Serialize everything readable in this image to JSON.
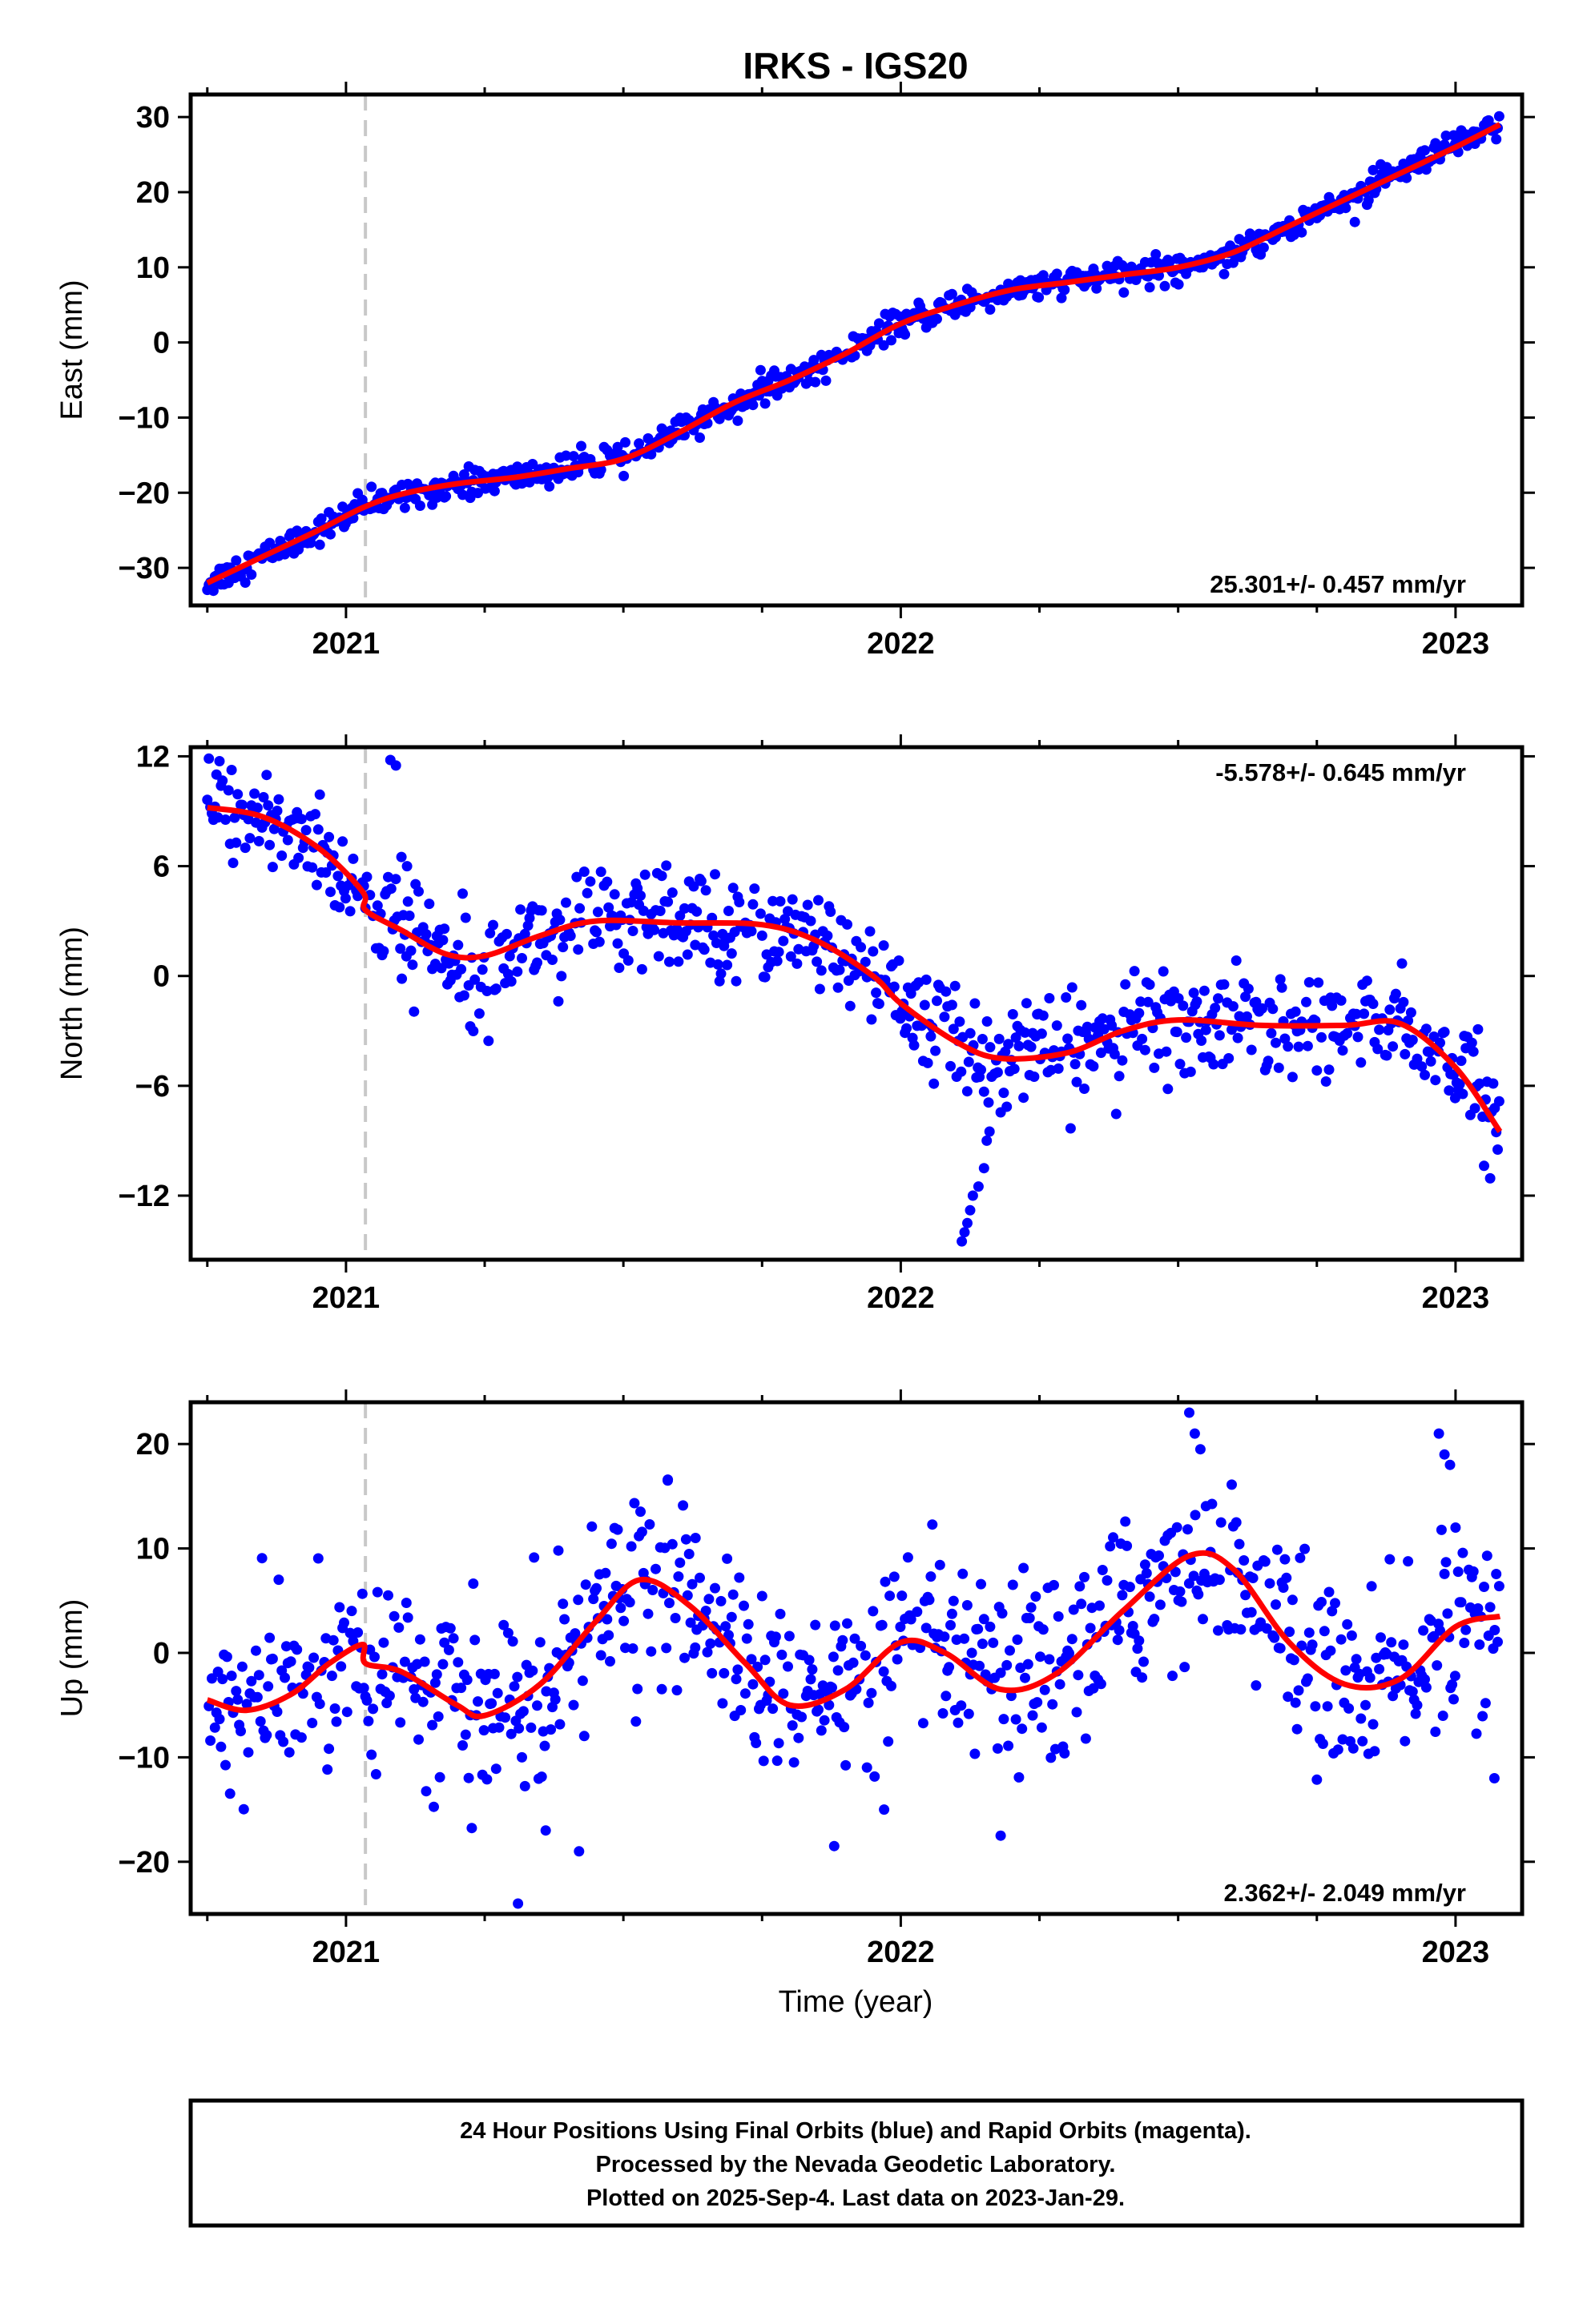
{
  "title": "IRKS - IGS20",
  "xlabel": "Time (year)",
  "footer": {
    "line1": "24 Hour Positions Using Final Orbits (blue) and Rapid Orbits (magenta).",
    "line2": "Processed by the Nevada Geodetic Laboratory.",
    "line3": "Plotted on 2025-Sep-4. Last data on 2023-Jan-29."
  },
  "colors": {
    "points": "#0000ff",
    "fit": "#ff0000",
    "event_line": "#c8c8c8",
    "frame": "#000000"
  },
  "chart_data": [
    {
      "type": "scatter",
      "component": "East",
      "ylabel": "East (mm)",
      "rate_label": "25.301+/- 0.457 mm/yr",
      "xlim": [
        2020.72,
        2023.12
      ],
      "ylim": [
        -35,
        33
      ],
      "yticks": [
        -30,
        -20,
        -10,
        0,
        10,
        20,
        30
      ],
      "ytick_labels": [
        "−30",
        "−20",
        "−10",
        "0",
        "10",
        "20",
        "30"
      ],
      "xticks": [
        2021,
        2022,
        2023
      ],
      "xtick_labels": [
        "2021",
        "2022",
        "2023"
      ],
      "event_line_x": 2021.035,
      "scatter_sigma": 0.9,
      "fit": {
        "x": [
          2020.75,
          2020.85,
          2020.95,
          2021.03,
          2021.1,
          2021.2,
          2021.3,
          2021.4,
          2021.5,
          2021.6,
          2021.7,
          2021.8,
          2021.9,
          2022.0,
          2022.1,
          2022.2,
          2022.3,
          2022.4,
          2022.5,
          2022.6,
          2022.7,
          2022.8,
          2022.9,
          2023.0,
          2023.08
        ],
        "y": [
          -32,
          -28.5,
          -25,
          -22,
          -20.2,
          -18.8,
          -18,
          -16.8,
          -15.5,
          -12,
          -8,
          -5,
          -1.5,
          2.5,
          5,
          7,
          8,
          9,
          10,
          12,
          15.5,
          19,
          22.5,
          26,
          29
        ]
      }
    },
    {
      "type": "scatter",
      "component": "North",
      "ylabel": "North (mm)",
      "rate_label": "-5.578+/- 0.645 mm/yr",
      "xlim": [
        2020.72,
        2023.12
      ],
      "ylim": [
        -15.5,
        12.5
      ],
      "yticks": [
        -12,
        -6,
        0,
        6,
        12
      ],
      "ytick_labels": [
        "−12",
        "−6",
        "0",
        "6",
        "12"
      ],
      "xticks": [
        2021,
        2022,
        2023
      ],
      "xtick_labels": [
        "2021",
        "2022",
        "2023"
      ],
      "event_line_x": 2021.035,
      "scatter_sigma": 1.4,
      "fit": {
        "x": [
          2020.75,
          2020.85,
          2020.95,
          2021.03,
          2021.035,
          2021.1,
          2021.18,
          2021.25,
          2021.35,
          2021.45,
          2021.6,
          2021.75,
          2021.85,
          2021.95,
          2022.0,
          2022.1,
          2022.18,
          2022.3,
          2022.4,
          2022.5,
          2022.65,
          2022.8,
          2022.9,
          2023.0,
          2023.08
        ],
        "y": [
          9.2,
          8.7,
          7.0,
          4.6,
          3.6,
          2.5,
          1.2,
          1.1,
          2.2,
          3.0,
          2.9,
          2.8,
          1.9,
          0.0,
          -1.5,
          -3.6,
          -4.5,
          -4.2,
          -3.0,
          -2.4,
          -2.7,
          -2.7,
          -2.6,
          -5.0,
          -8.5
        ]
      },
      "outliers": {
        "x": [
          2021.08,
          2021.09,
          2021.1,
          2021.11,
          2022.11,
          2022.115,
          2022.12,
          2022.125,
          2022.13,
          2022.14,
          2022.15,
          2022.155,
          2022.16
        ],
        "y": [
          11.8,
          11.5,
          6.5,
          6.0,
          -14.5,
          -14.0,
          -13.5,
          -12.8,
          -12.0,
          -11.5,
          -10.5,
          -9.0,
          -8.5
        ]
      }
    },
    {
      "type": "scatter",
      "component": "Up",
      "ylabel": "Up (mm)",
      "rate_label": "2.362+/- 2.049 mm/yr",
      "xlim": [
        2020.72,
        2023.12
      ],
      "ylim": [
        -25,
        24
      ],
      "yticks": [
        -20,
        -10,
        0,
        10,
        20
      ],
      "ytick_labels": [
        "−20",
        "−10",
        "0",
        "10",
        "20"
      ],
      "xticks": [
        2021,
        2022,
        2023
      ],
      "xtick_labels": [
        "2021",
        "2022",
        "2023"
      ],
      "event_line_x": 2021.035,
      "scatter_sigma": 4.2,
      "fit": {
        "x": [
          2020.75,
          2020.82,
          2020.9,
          2020.97,
          2021.03,
          2021.035,
          2021.1,
          2021.2,
          2021.25,
          2021.35,
          2021.45,
          2021.53,
          2021.62,
          2021.72,
          2021.8,
          2021.9,
          2022.0,
          2022.08,
          2022.18,
          2022.28,
          2022.4,
          2022.52,
          2022.6,
          2022.7,
          2022.8,
          2022.9,
          2023.0,
          2023.08
        ],
        "y": [
          -4.5,
          -5.5,
          -4.0,
          -1.0,
          0.8,
          -1.0,
          -1.8,
          -5.0,
          -6.0,
          -3.0,
          3.0,
          7.0,
          4.5,
          -1.0,
          -5.0,
          -3.5,
          1.0,
          0.0,
          -3.5,
          -2.0,
          4.0,
          9.3,
          8.0,
          1.0,
          -3.0,
          -2.5,
          2.5,
          3.5
        ]
      },
      "outliers": {
        "x": [
          2021.31,
          2021.36,
          2021.42,
          2021.58,
          2021.63,
          2021.88,
          2021.97,
          2022.18,
          2022.52,
          2022.53,
          2022.54,
          2022.97,
          2022.98,
          2022.99,
          2023.0,
          2023.07
        ],
        "y": [
          -24,
          -17,
          -19,
          16.5,
          11,
          -18.5,
          -15,
          -17.5,
          23,
          21,
          19.5,
          21,
          19,
          18,
          12,
          -12
        ]
      }
    }
  ]
}
